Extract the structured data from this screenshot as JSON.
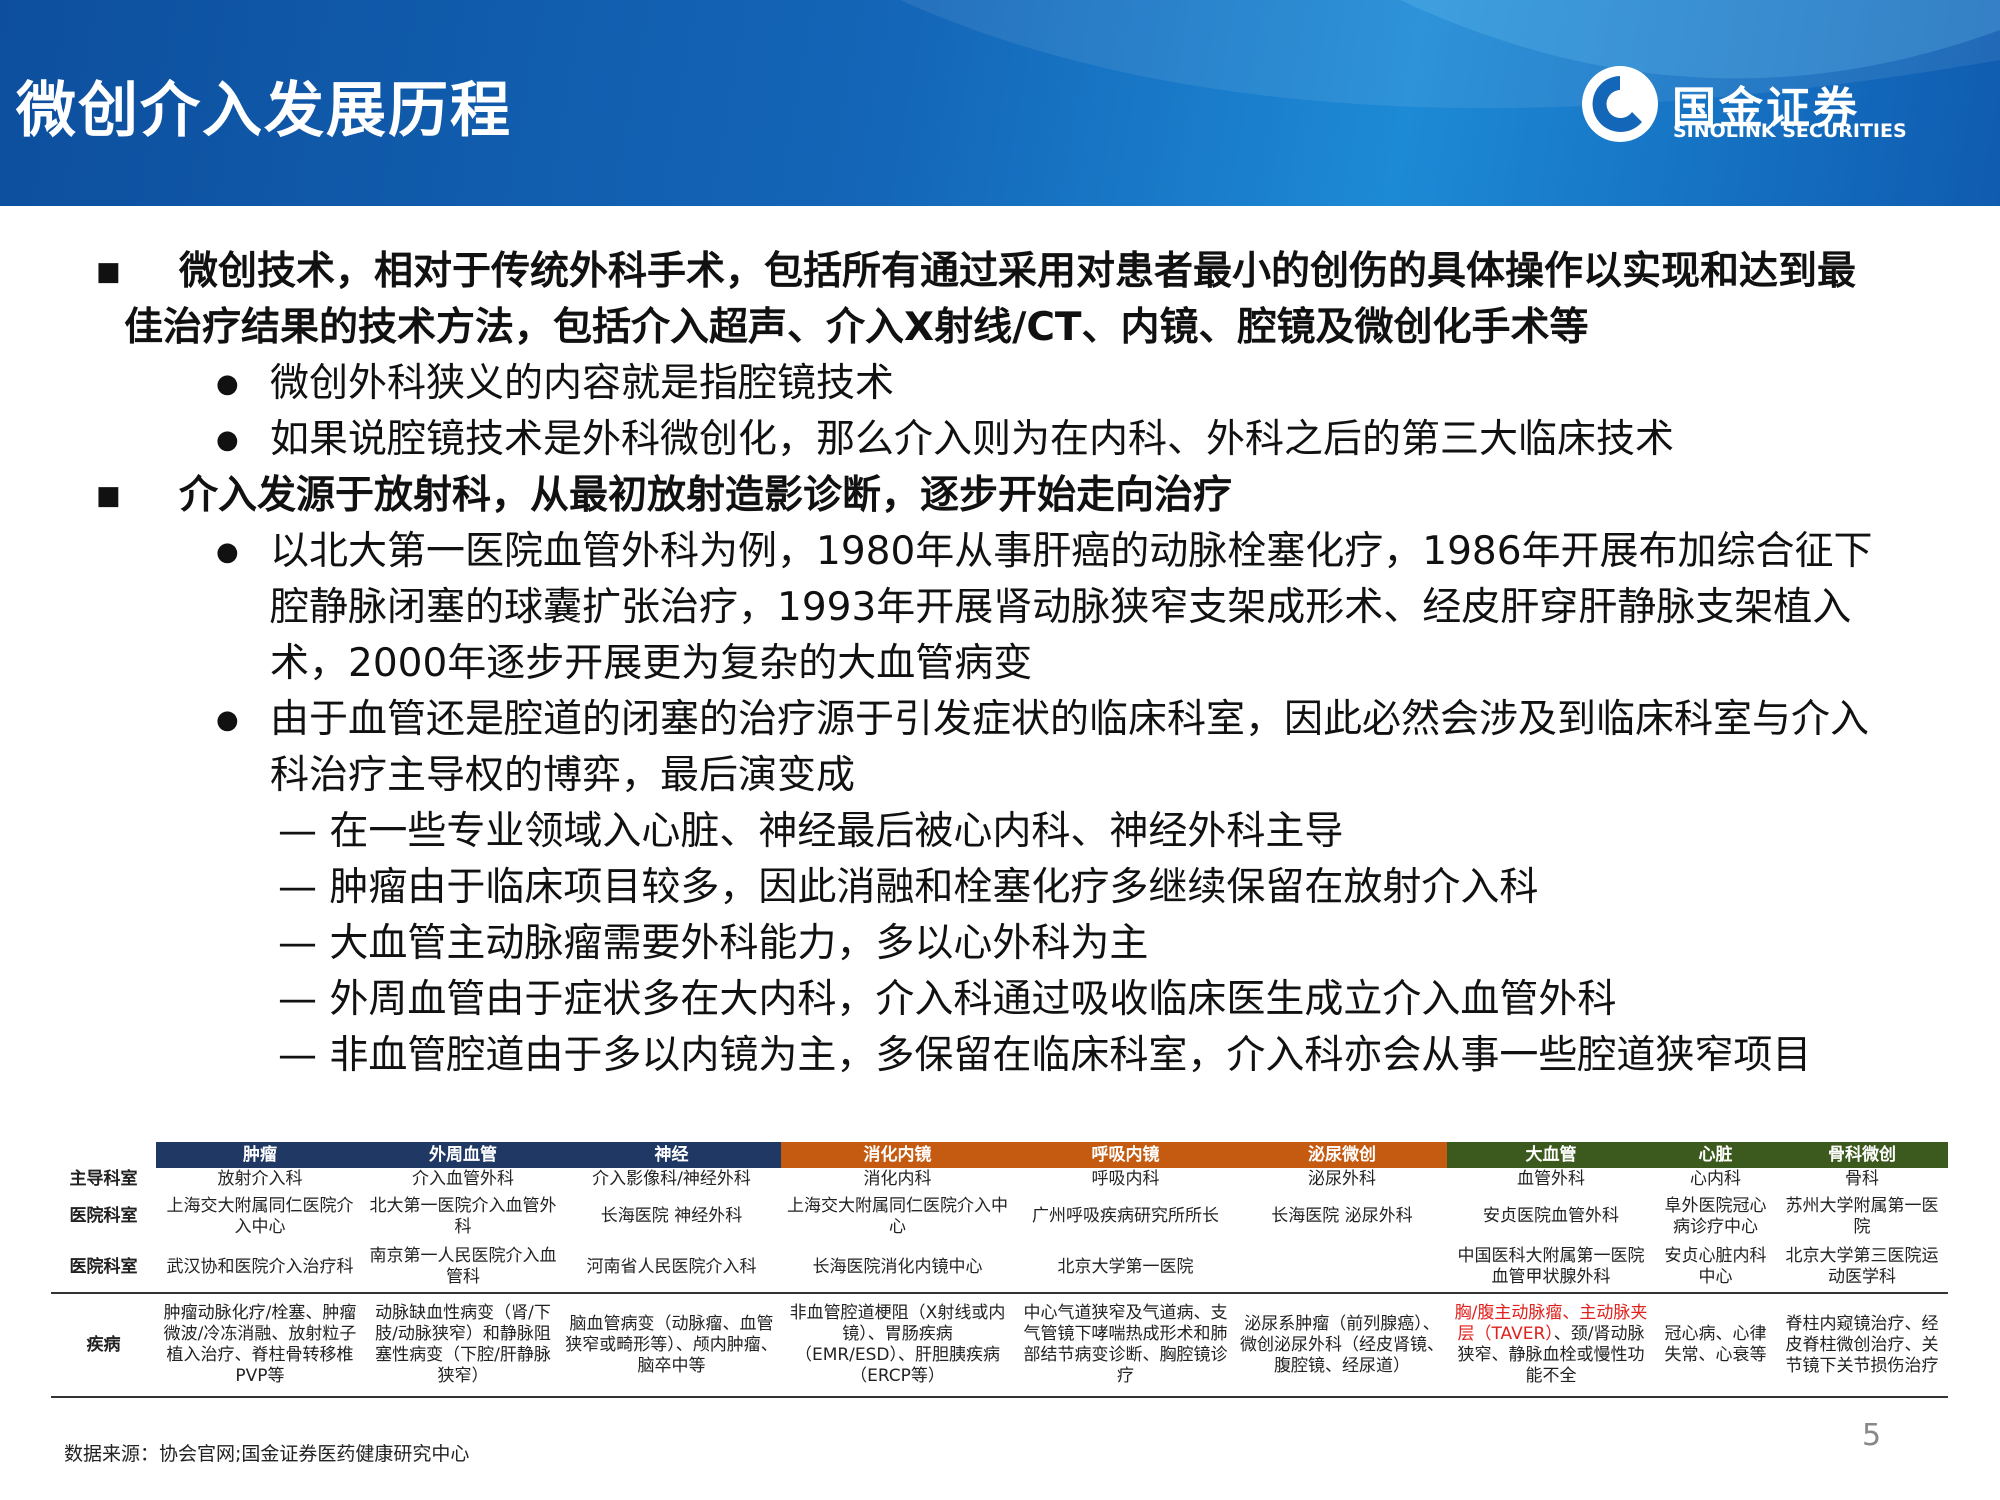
{
  "header": {
    "title": "微创介入发展历程",
    "logo_cn": "国金证券",
    "logo_en": "SINOLINK SECURITIES"
  },
  "body": [
    {
      "level": 1,
      "text": "微创技术，相对于传统外科手术，包括所有通过采用对患者最小的创伤的具体操作以实现和达到最佳治疗结果的技术方法，包括介入超声、介入X射线/CT、内镜、腔镜及微创化手术等"
    },
    {
      "level": 2,
      "text": "微创外科狭义的内容就是指腔镜技术"
    },
    {
      "level": 2,
      "text": "如果说腔镜技术是外科微创化，那么介入则为在内科、外科之后的第三大临床技术"
    },
    {
      "level": 1,
      "text": "介入发源于放射科，从最初放射造影诊断，逐步开始走向治疗"
    },
    {
      "level": 2,
      "text": "以北大第一医院血管外科为例，1980年从事肝癌的动脉栓塞化疗，1986年开展布加综合征下腔静脉闭塞的球囊扩张治疗，1993年开展肾动脉狭窄支架成形术、经皮肝穿肝静脉支架植入术，2000年逐步开展更为复杂的大血管病变"
    },
    {
      "level": 2,
      "text": "由于血管还是腔道的闭塞的治疗源于引发症状的临床科室，因此必然会涉及到临床科室与介入科治疗主导权的博弈，最后演变成"
    },
    {
      "level": 3,
      "text": "— 在一些专业领域入心脏、神经最后被心内科、神经外科主导"
    },
    {
      "level": 3,
      "text": "— 肿瘤由于临床项目较多，因此消融和栓塞化疗多继续保留在放射介入科"
    },
    {
      "level": 3,
      "text": "— 大血管主动脉瘤需要外科能力，多以心外科为主"
    },
    {
      "level": 3,
      "text": "— 外周血管由于症状多在大内科，介入科通过吸收临床医生成立介入血管外科"
    },
    {
      "level": 3,
      "text": "— 非血管腔道由于多以内镜为主，多保留在临床科室，介入科亦会从事一些腔道狭窄项目"
    }
  ],
  "table": {
    "columns": [
      {
        "name": "肿瘤",
        "color": "#1f3864"
      },
      {
        "name": "外周血管",
        "color": "#1f3864"
      },
      {
        "name": "神经",
        "color": "#1f3864"
      },
      {
        "name": "消化内镜",
        "color": "#c55a11"
      },
      {
        "name": "呼吸内镜",
        "color": "#c55a11"
      },
      {
        "name": "泌尿微创",
        "color": "#c55a11"
      },
      {
        "name": "大血管",
        "color": "#3d5a1e"
      },
      {
        "name": "心脏",
        "color": "#3d5a1e"
      },
      {
        "name": "骨科微创",
        "color": "#3d5a1e"
      }
    ],
    "rows": [
      {
        "label": "主导科室",
        "cells": [
          "放射介入科",
          "介入血管外科",
          "介入影像科/神经外科",
          "消化内科",
          "呼吸内科",
          "泌尿外科",
          "血管外科",
          "心内科",
          "骨科"
        ]
      },
      {
        "label": "医院科室",
        "cells": [
          "上海交大附属同仁医院介入中心",
          "北大第一医院介入血管外科",
          "长海医院 神经外科",
          "上海交大附属同仁医院介入中心",
          "广州呼吸疾病研究所所长",
          "长海医院 泌尿外科",
          "安贞医院血管外科",
          "阜外医院冠心病诊疗中心",
          "苏州大学附属第一医院"
        ]
      },
      {
        "label": "医院科室",
        "cells": [
          "武汉协和医院介入治疗科",
          "南京第一人民医院介入血管科",
          "河南省人民医院介入科",
          "长海医院消化内镜中心",
          "北京大学第一医院",
          null,
          "中国医科大附属第一医院血管甲状腺外科",
          "安贞心脏内科中心",
          "北京大学第三医院运动医学科"
        ]
      },
      {
        "label": "疾病",
        "cells": [
          "肿瘤动脉化疗/栓塞、肿瘤微波/冷冻消融、放射粒子植入治疗、脊柱骨转移椎PVP等",
          "动脉缺血性病变（肾/下肢/动脉狭窄）和静脉阻塞性病变（下腔/肝静脉狭窄）",
          "脑血管病变（动脉瘤、血管狭窄或畸形等）、颅内肿瘤、脑卒中等",
          "非血管腔道梗阻（X射线或内镜）、胃肠疾病（EMR/ESD）、肝胆胰疾病（ERCP等）",
          "中心气道狭窄及气道病、支气管镜下哮喘热成形术和肺部结节病变诊断、胸腔镜诊疗",
          "泌尿系肿瘤（前列腺癌）、微创泌尿外科（经皮肾镜、腹腔镜、经尿道）",
          [
            "胸/腹主动脉瘤、主动脉夹层（TAVER）",
            "、颈/肾动脉狭窄、静脉血栓或慢性功能不全"
          ],
          "冠心病、心律失常、心衰等",
          "脊柱内窥镜治疗、经皮脊柱微创治疗、关节镜下关节损伤治疗"
        ]
      }
    ]
  },
  "footer": {
    "source": "数据来源：协会官网;国金证券医药健康研究中心",
    "page": "5"
  }
}
